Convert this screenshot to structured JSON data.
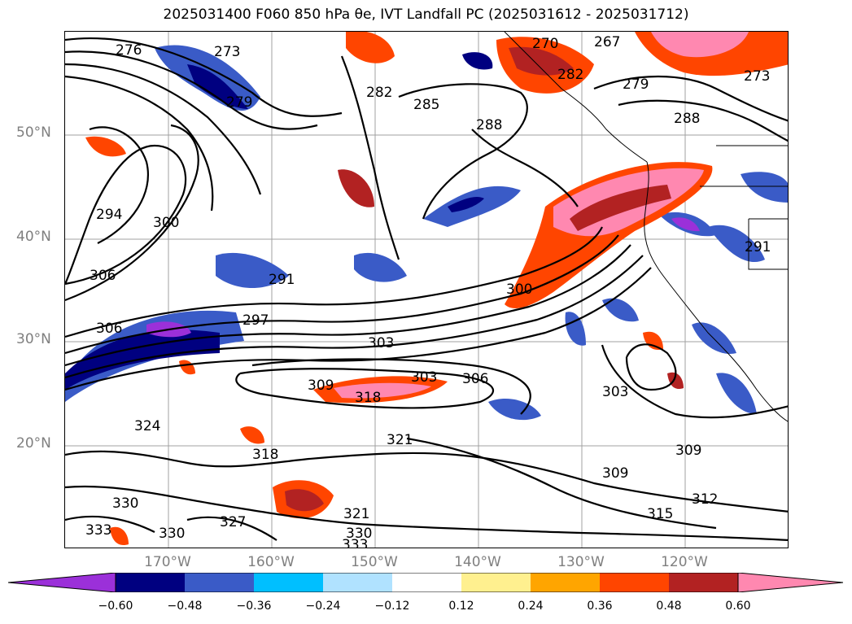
{
  "title": "2025031400 F060 850 hPa θe, IVT Landfall PC (2025031612 - 2025031712)",
  "lat_labels": [
    "50°N",
    "40°N",
    "30°N",
    "20°N"
  ],
  "lon_labels": [
    "170°W",
    "160°W",
    "150°W",
    "140°W",
    "130°W",
    "120°W"
  ],
  "contour_labels": [
    "276",
    "273",
    "270",
    "267",
    "273",
    "273",
    "282",
    "282",
    "285",
    "288",
    "288",
    "279",
    "279",
    "294",
    "300",
    "306",
    "291",
    "297",
    "306",
    "300",
    "303",
    "303",
    "306",
    "309",
    "318",
    "303",
    "324",
    "321",
    "318",
    "309",
    "309",
    "312",
    "315",
    "330",
    "327",
    "321",
    "330",
    "333",
    "330",
    "333",
    "291"
  ],
  "colorbar": {
    "ticks": [
      "−0.60",
      "−0.48",
      "−0.36",
      "−0.24",
      "−0.12",
      "0.12",
      "0.24",
      "0.36",
      "0.48",
      "0.60"
    ],
    "colors": [
      "#9b30d9",
      "#000080",
      "#3a5bc7",
      "#00bfff",
      "#b0e2ff",
      "#ffffff",
      "#fff08f",
      "#ffa500",
      "#ff4500",
      "#b22222",
      "#ff88b0"
    ]
  }
}
